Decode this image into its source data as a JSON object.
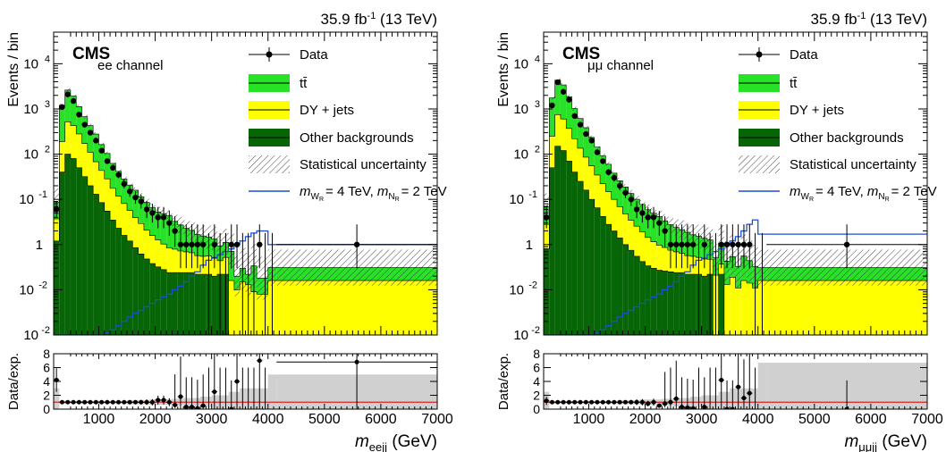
{
  "chart_data": [
    {
      "type": "histogram",
      "lumi": "35.9 fb",
      "lumi_sup": "-1",
      "lumi_energy": " (13 TeV)",
      "experiment": "CMS",
      "channel": "ee channel",
      "ylabel": "Events / bin",
      "ratio_ylabel": "Data/exp.",
      "xlabel_main": "m",
      "xlabel_sub": "eejj",
      "xlabel_unit": " (GeV)",
      "x_range": [
        200,
        7000
      ],
      "y_range": [
        0.01,
        50000
      ],
      "y_scale": "log",
      "ratio_range": [
        0,
        8
      ],
      "ratio_ticks": [
        "0",
        "2",
        "4",
        "6",
        "8"
      ],
      "x_ticks": [
        "1000",
        "2000",
        "3000",
        "4000",
        "5000",
        "6000",
        "7000"
      ],
      "y_ticks": [
        "10",
        "10",
        "10",
        "1",
        "10",
        "10",
        "10"
      ],
      "y_tick_exps": [
        "4",
        "3",
        "2",
        "",
        "-1",
        "-2",
        ""
      ],
      "legend": [
        {
          "label": "Data",
          "kind": "marker",
          "color": "#000000"
        },
        {
          "label": "tt̄",
          "kind": "fill",
          "color": "#27E227"
        },
        {
          "label": "DY + jets",
          "kind": "fill",
          "color": "#FFFF00"
        },
        {
          "label": "Other backgrounds",
          "kind": "fill",
          "color": "#066606"
        },
        {
          "label": "Statistical uncertainty",
          "kind": "hatch",
          "color": "#555555"
        },
        {
          "label": "= 4 TeV,",
          "kind": "line",
          "color": "#1F4FD0",
          "prefix": "m",
          "sub": "W",
          "subsub": "R",
          "suffix_m": "m",
          "suffix_sub": "N",
          "suffix_subsub": "R",
          "suffix_text": "= 2 TeV"
        }
      ],
      "bin_edges": [
        200,
        300,
        400,
        500,
        600,
        700,
        800,
        900,
        1000,
        1100,
        1200,
        1300,
        1400,
        1500,
        1600,
        1700,
        1800,
        1900,
        2000,
        2100,
        2200,
        2300,
        2400,
        2500,
        2600,
        2700,
        2800,
        2900,
        3000,
        3100,
        3200,
        3300,
        3400,
        3500,
        3600,
        3700,
        3800,
        3900,
        4000,
        4150,
        7000
      ],
      "stack": {
        "other": [
          1.2,
          40,
          100,
          80,
          50,
          32,
          20,
          13,
          8.5,
          5.5,
          3.5,
          2.3,
          1.6,
          1.2,
          0.85,
          0.62,
          0.48,
          0.38,
          0.32,
          0.28,
          0.24,
          0.24,
          0.24,
          0.24,
          0.24,
          0.22,
          0.22,
          0.22,
          0.2,
          0.22,
          0.22,
          0.01,
          0.01,
          0.01,
          0.01,
          0.01,
          0.01,
          0.01,
          0.01,
          0.01
        ],
        "dy": [
          2.5,
          150,
          420,
          350,
          230,
          140,
          90,
          55,
          35,
          23,
          14,
          9.5,
          6.5,
          4.5,
          3.1,
          2.3,
          1.6,
          1.2,
          0.95,
          0.75,
          0.6,
          0.55,
          0.48,
          0.45,
          0.42,
          0.35,
          0.33,
          0.34,
          0.32,
          0.22,
          0.3,
          0.15,
          0.09,
          0.14,
          0.12,
          0.08,
          0.07,
          0.07,
          0.15,
          0.15
        ],
        "ttbar": [
          5,
          1000,
          2100,
          1500,
          850,
          500,
          320,
          210,
          120,
          75,
          45,
          30,
          20,
          15,
          12,
          8.5,
          6.5,
          5,
          4,
          3.8,
          3.5,
          2.5,
          2,
          1.6,
          1.4,
          1.1,
          1,
          0.9,
          0.8,
          0.5,
          0.6,
          0.55,
          0.1,
          0.15,
          0.09,
          0.25,
          0.1,
          0.1,
          0.15,
          0.15
        ],
        "unc": [
          1.0,
          0.1,
          0.1,
          0.1,
          0.1,
          0.1,
          0.1,
          0.1,
          0.1,
          0.1,
          0.1,
          0.12,
          0.12,
          0.15,
          0.15,
          0.2,
          0.2,
          0.25,
          0.3,
          0.3,
          0.35,
          0.4,
          0.5,
          0.5,
          0.6,
          0.6,
          0.7,
          0.8,
          0.9,
          0.9,
          1.0,
          1.5,
          1.8,
          2.0,
          2.0,
          2.0,
          2.0,
          2.0,
          1.5,
          1.5
        ]
      },
      "signal": [
        0.01,
        0.01,
        0.01,
        0.01,
        0.01,
        0.01,
        0.01,
        0.01,
        0.01,
        0.011,
        0.013,
        0.016,
        0.02,
        0.025,
        0.03,
        0.035,
        0.042,
        0.05,
        0.06,
        0.07,
        0.08,
        0.1,
        0.12,
        0.15,
        0.2,
        0.25,
        0.35,
        0.45,
        0.5,
        0.6,
        0.7,
        0.8,
        1.0,
        1.2,
        1.5,
        1.8,
        2.0,
        2.0,
        1.0,
        1.0
      ],
      "data_x": [
        250,
        350,
        450,
        550,
        650,
        750,
        850,
        950,
        1050,
        1150,
        1250,
        1350,
        1450,
        1550,
        1650,
        1750,
        1850,
        1950,
        2050,
        2150,
        2250,
        2350,
        2450,
        2550,
        2650,
        2750,
        2850,
        2950,
        3050,
        3150,
        3250,
        3350,
        3450,
        3550,
        3650,
        3750,
        3850,
        3950,
        4075,
        5575
      ],
      "data_y": [
        6,
        1100,
        2100,
        1500,
        750,
        450,
        300,
        200,
        120,
        70,
        50,
        35,
        22,
        15,
        11,
        9,
        6,
        5,
        4,
        4,
        3,
        2,
        1,
        1,
        1,
        1,
        1,
        0,
        1,
        0,
        0,
        1,
        1,
        0,
        0,
        0,
        1,
        0,
        0,
        1
      ],
      "ratio_y": [
        4.2,
        1.0,
        1.0,
        1.0,
        1.0,
        1.0,
        1.0,
        1.0,
        1.0,
        1.0,
        1.0,
        1.0,
        1.0,
        1.0,
        1.0,
        1.0,
        1.0,
        1.0,
        1.3,
        1.3,
        1.0,
        0.6,
        1.8,
        0.3,
        0.3,
        0.1,
        0.5,
        0.0,
        2.5,
        0.0,
        3.5,
        0.0,
        4.0,
        0.0,
        0.0,
        0.0,
        7.0,
        0.0,
        0.0,
        6.8
      ],
      "ratio_unc": [
        2,
        0.2,
        0.2,
        0.2,
        0.2,
        0.2,
        0.2,
        0.2,
        0.2,
        0.2,
        0.2,
        0.2,
        0.2,
        0.3,
        0.3,
        0.3,
        0.3,
        0.4,
        0.4,
        0.4,
        0.4,
        0.5,
        0.5,
        0.6,
        0.6,
        0.6,
        0.8,
        0.8,
        1.0,
        1.0,
        1.0,
        1.5,
        1.5,
        2.0,
        2.0,
        2.0,
        2.0,
        2.0,
        4.0,
        4.0
      ]
    },
    {
      "type": "histogram",
      "lumi": "35.9 fb",
      "lumi_sup": "-1",
      "lumi_energy": " (13 TeV)",
      "experiment": "CMS",
      "channel": "μμ channel",
      "ylabel": "Events / bin",
      "ratio_ylabel": "Data/exp.",
      "xlabel_main": "m",
      "xlabel_sub": "μμjj",
      "xlabel_unit": " (GeV)",
      "x_range": [
        200,
        7000
      ],
      "y_range": [
        0.01,
        50000
      ],
      "y_scale": "log",
      "ratio_range": [
        0,
        8
      ],
      "ratio_ticks": [
        "0",
        "2",
        "4",
        "6",
        "8"
      ],
      "x_ticks": [
        "1000",
        "2000",
        "3000",
        "4000",
        "5000",
        "6000",
        "7000"
      ],
      "y_ticks": [
        "10",
        "10",
        "10",
        "1",
        "10",
        "10",
        "10"
      ],
      "y_tick_exps": [
        "4",
        "3",
        "2",
        "",
        "-1",
        "-2",
        ""
      ],
      "legend": [
        {
          "label": "Data",
          "kind": "marker",
          "color": "#000000"
        },
        {
          "label": "tt̄",
          "kind": "fill",
          "color": "#27E227"
        },
        {
          "label": "DY + jets",
          "kind": "fill",
          "color": "#FFFF00"
        },
        {
          "label": "Other backgrounds",
          "kind": "fill",
          "color": "#066606"
        },
        {
          "label": "Statistical uncertainty",
          "kind": "hatch",
          "color": "#555555"
        },
        {
          "label": "= 4 TeV,",
          "kind": "line",
          "color": "#1F4FD0",
          "prefix": "m",
          "sub": "W",
          "subsub": "R",
          "suffix_m": "m",
          "suffix_sub": "N",
          "suffix_subsub": "R",
          "suffix_text": "= 2 TeV"
        }
      ],
      "bin_edges": [
        200,
        300,
        400,
        500,
        600,
        700,
        800,
        900,
        1000,
        1100,
        1200,
        1300,
        1400,
        1500,
        1600,
        1700,
        1800,
        1900,
        2000,
        2100,
        2200,
        2300,
        2400,
        2500,
        2600,
        2700,
        2800,
        2900,
        3000,
        3100,
        3200,
        3300,
        3400,
        3500,
        3600,
        3700,
        3800,
        3900,
        4000,
        4150,
        7000
      ],
      "stack": {
        "other": [
          0.8,
          50,
          150,
          120,
          70,
          40,
          25,
          16,
          10,
          6.5,
          4.2,
          2.8,
          2,
          1.4,
          1,
          0.75,
          0.55,
          0.42,
          0.34,
          0.3,
          0.27,
          0.26,
          0.25,
          0.24,
          0.24,
          0.22,
          0.22,
          0.22,
          0.2,
          0.22,
          0.01,
          0.22,
          0.01,
          0.01,
          0.01,
          0.01,
          0.01,
          0.01,
          0.01,
          0.01
        ],
        "dy": [
          2,
          200,
          600,
          480,
          300,
          180,
          110,
          70,
          45,
          28,
          18,
          12,
          8,
          5.5,
          3.8,
          2.7,
          2,
          1.5,
          1.1,
          0.85,
          0.7,
          0.6,
          0.5,
          0.45,
          0.4,
          0.35,
          0.33,
          0.3,
          0.28,
          0.25,
          0.2,
          0.15,
          0.12,
          0.18,
          0.1,
          0.15,
          0.13,
          0.1,
          0.15,
          0.15
        ],
        "ttbar": [
          4,
          1500,
          3600,
          2800,
          1500,
          800,
          480,
          300,
          180,
          110,
          70,
          45,
          28,
          19,
          14,
          10,
          7.5,
          5.8,
          4.5,
          3.8,
          3.2,
          2.5,
          2.0,
          1.7,
          1.5,
          1.3,
          1.1,
          1.0,
          0.9,
          0.8,
          0.3,
          0.7,
          0.3,
          0.35,
          0.22,
          0.4,
          0.3,
          0.22,
          0.15,
          0.15
        ],
        "unc": [
          1.0,
          0.1,
          0.1,
          0.1,
          0.1,
          0.1,
          0.1,
          0.1,
          0.1,
          0.1,
          0.1,
          0.12,
          0.12,
          0.15,
          0.15,
          0.2,
          0.2,
          0.25,
          0.3,
          0.3,
          0.35,
          0.4,
          0.5,
          0.5,
          0.6,
          0.6,
          0.7,
          0.8,
          0.9,
          0.9,
          1.0,
          1.5,
          1.8,
          2.0,
          2.0,
          2.0,
          2.0,
          2.0,
          1.5,
          1.5
        ]
      },
      "signal": [
        0.01,
        0.01,
        0.01,
        0.01,
        0.01,
        0.01,
        0.01,
        0.01,
        0.01,
        0.011,
        0.013,
        0.016,
        0.02,
        0.025,
        0.03,
        0.035,
        0.042,
        0.05,
        0.06,
        0.07,
        0.08,
        0.1,
        0.12,
        0.15,
        0.2,
        0.25,
        0.35,
        0.45,
        0.5,
        0.6,
        0.7,
        0.8,
        1.0,
        1.2,
        1.5,
        2.0,
        2.8,
        3.5,
        1.7,
        1.7
      ],
      "data_x": [
        250,
        350,
        450,
        550,
        650,
        750,
        850,
        950,
        1050,
        1150,
        1250,
        1350,
        1450,
        1550,
        1650,
        1750,
        1850,
        1950,
        2050,
        2150,
        2250,
        2350,
        2450,
        2550,
        2650,
        2750,
        2850,
        2950,
        3050,
        3150,
        3250,
        3350,
        3450,
        3550,
        3650,
        3750,
        3850,
        3950,
        4075,
        5575
      ],
      "data_y": [
        4,
        1200,
        3900,
        2400,
        1600,
        700,
        450,
        280,
        200,
        110,
        70,
        40,
        30,
        20,
        14,
        10,
        6,
        5,
        4,
        4,
        3,
        2,
        1,
        1,
        1,
        1,
        1,
        0,
        1,
        0,
        0,
        1,
        1,
        1,
        1,
        1,
        1,
        0,
        0,
        1
      ],
      "ratio_y": [
        1.2,
        1.0,
        1.0,
        1.0,
        1.0,
        1.0,
        1.0,
        1.0,
        1.0,
        1.0,
        1.0,
        1.0,
        1.0,
        1.0,
        1.0,
        1.0,
        1.0,
        1.0,
        0.8,
        1.0,
        0.5,
        0.8,
        1.0,
        1.5,
        0.3,
        0.2,
        0.1,
        0.0,
        0.3,
        0.0,
        0.1,
        4.2,
        0.0,
        0.0,
        3.2,
        1.6,
        2.3,
        5.3,
        0.0,
        0.0
      ],
      "ratio_unc": [
        1.5,
        0.2,
        0.2,
        0.2,
        0.2,
        0.2,
        0.2,
        0.2,
        0.2,
        0.2,
        0.2,
        0.2,
        0.2,
        0.3,
        0.3,
        0.3,
        0.3,
        0.4,
        0.4,
        0.4,
        0.4,
        0.5,
        0.5,
        0.6,
        0.6,
        0.6,
        0.8,
        0.8,
        1.0,
        1.0,
        1.0,
        1.5,
        1.5,
        2.0,
        2.0,
        2.0,
        2.0,
        2.0,
        5.7,
        5.7
      ]
    }
  ]
}
